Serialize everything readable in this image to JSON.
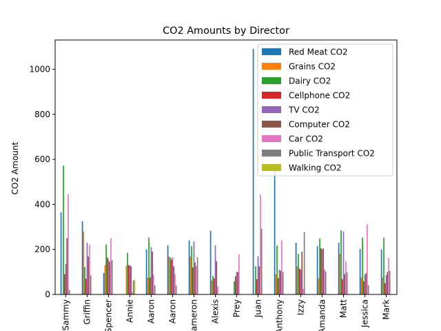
{
  "chart_data": {
    "type": "bar",
    "title": "CO2 Amounts by Director",
    "xlabel": "",
    "ylabel": "CO2 Amount",
    "ylim": [
      0,
      1130
    ],
    "yticks": [
      0,
      200,
      400,
      600,
      800,
      1000
    ],
    "grid": false,
    "legend_position": "top-right",
    "categories": [
      "Sammy",
      "Griffin",
      "Spencer",
      "Annie",
      "Aaron",
      "Aaron",
      "Cameron",
      "Alexis",
      "Prey",
      "Juan",
      "Anthony",
      "Izzy",
      "Amanda",
      "Matt",
      "Jessica",
      "Mark"
    ],
    "series": [
      {
        "name": "Red Meat CO2",
        "color": "#1f77b4",
        "values": [
          365,
          325,
          95,
          0,
          200,
          218,
          240,
          283,
          0,
          1090,
          555,
          230,
          215,
          230,
          202,
          200
        ]
      },
      {
        "name": "Grains CO2",
        "color": "#ff7f0e",
        "values": [
          0,
          280,
          130,
          128,
          75,
          168,
          168,
          62,
          0,
          0,
          90,
          125,
          72,
          180,
          75,
          75
        ]
      },
      {
        "name": "Dairy CO2",
        "color": "#2ca02c",
        "values": [
          572,
          122,
          222,
          185,
          252,
          165,
          215,
          82,
          58,
          125,
          217,
          180,
          248,
          285,
          252,
          252
        ]
      },
      {
        "name": "Cellphone CO2",
        "color": "#d62728",
        "values": [
          90,
          70,
          165,
          130,
          75,
          155,
          120,
          72,
          80,
          68,
          72,
          115,
          205,
          68,
          58,
          50
        ]
      },
      {
        "name": "TV CO2",
        "color": "#9467bd",
        "values": [
          135,
          230,
          155,
          130,
          210,
          165,
          235,
          218,
          100,
          170,
          110,
          110,
          200,
          280,
          88,
          85
        ]
      },
      {
        "name": "Computer CO2",
        "color": "#8c564b",
        "values": [
          250,
          168,
          145,
          125,
          190,
          125,
          142,
          148,
          100,
          125,
          105,
          190,
          205,
          90,
          95,
          100
        ]
      },
      {
        "name": "Car CO2",
        "color": "#e377c2",
        "values": [
          445,
          220,
          250,
          10,
          88,
          90,
          125,
          36,
          178,
          443,
          240,
          25,
          112,
          148,
          312,
          162
        ]
      },
      {
        "name": "Public Transport CO2",
        "color": "#7f7f7f",
        "values": [
          20,
          85,
          152,
          62,
          40,
          40,
          165,
          0,
          0,
          292,
          100,
          277,
          102,
          98,
          42,
          105
        ]
      },
      {
        "name": "Walking CO2",
        "color": "#bcbd22",
        "values": [
          0,
          0,
          0,
          66,
          0,
          0,
          0,
          0,
          0,
          0,
          0,
          0,
          0,
          0,
          0,
          0
        ]
      }
    ]
  }
}
